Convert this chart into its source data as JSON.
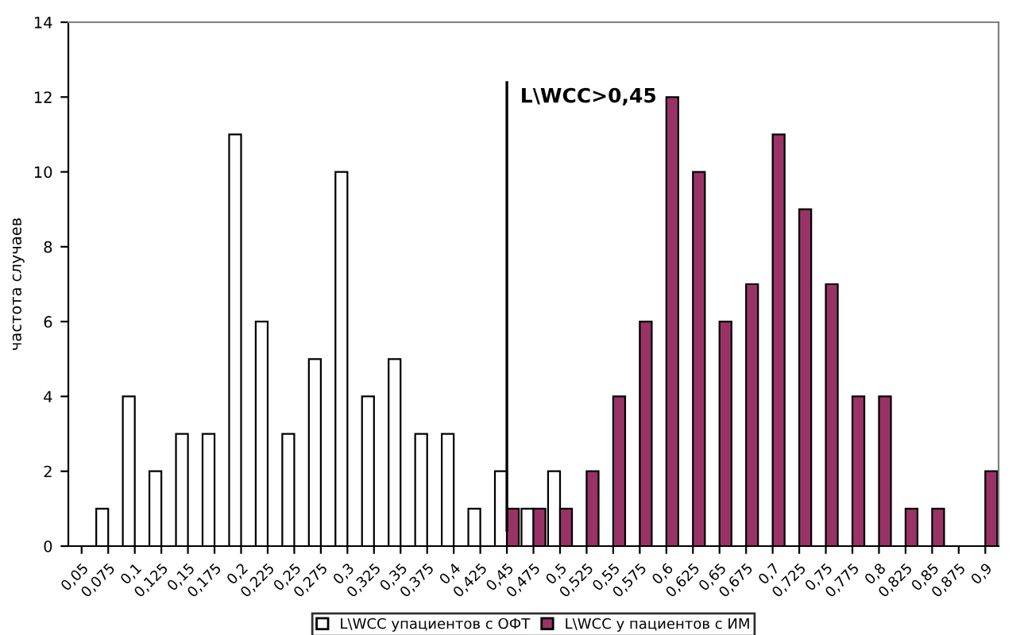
{
  "chart_data": {
    "type": "bar",
    "ylabel": "частота случаев",
    "categories": [
      "0,05",
      "0,075",
      "0,1",
      "0,125",
      "0,15",
      "0,175",
      "0,2",
      "0,225",
      "0,25",
      "0,275",
      "0,3",
      "0,325",
      "0,35",
      "0,375",
      "0,4",
      "0,425",
      "0,45",
      "0,475",
      "0,5",
      "0,525",
      "0,55",
      "0,575",
      "0,6",
      "0,625",
      "0,65",
      "0,675",
      "0,7",
      "0,725",
      "0,75",
      "0,775",
      "0,8",
      "0,825",
      "0,85",
      "0,875",
      "0,9"
    ],
    "series": [
      {
        "name": "L\\WCC упациентов с ОФТ",
        "color": "#ffffff",
        "values": [
          0,
          1,
          4,
          2,
          3,
          3,
          11,
          6,
          3,
          5,
          10,
          4,
          5,
          3,
          3,
          1,
          2,
          1,
          2,
          0,
          0,
          0,
          0,
          0,
          0,
          0,
          0,
          0,
          0,
          0,
          0,
          0,
          0,
          0,
          0
        ]
      },
      {
        "name": "L\\WCC у пациентов с ИМ",
        "color": "#993366",
        "values": [
          0,
          0,
          0,
          0,
          0,
          0,
          0,
          0,
          0,
          0,
          0,
          0,
          0,
          0,
          0,
          0,
          1,
          1,
          1,
          2,
          4,
          6,
          12,
          10,
          6,
          7,
          11,
          9,
          7,
          4,
          4,
          1,
          1,
          0,
          2
        ]
      }
    ],
    "ylim": [
      0,
      14
    ],
    "yticks": [
      0,
      2,
      4,
      6,
      8,
      10,
      12,
      14
    ],
    "ref_lines": [
      {
        "axis": "x",
        "value": "0,45",
        "label": "L\\WCC>0,45",
        "color": "#000000"
      }
    ],
    "legend": "bottom",
    "grid": false
  }
}
